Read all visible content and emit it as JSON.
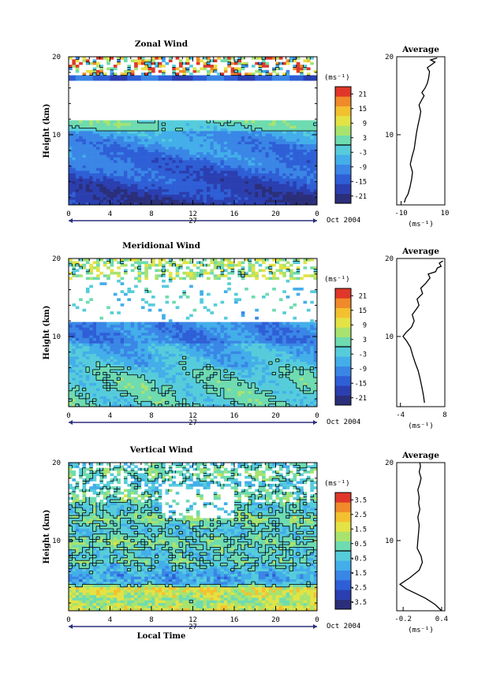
{
  "chart_data": [
    {
      "type": "heatmap",
      "title": "Zonal Wind",
      "xlabel": "",
      "ylabel": "Height (km)",
      "x_ticks": [
        "0",
        "4",
        "8",
        "12",
        "16",
        "20",
        "0"
      ],
      "y_ticks": [
        "10",
        "20"
      ],
      "xlim": [
        0,
        24
      ],
      "ylim": [
        1,
        20
      ],
      "date_marker": "27",
      "date_label": "Oct 2004",
      "colorbar": {
        "unit": "(ms⁻¹)",
        "ticks": [
          "21",
          "15",
          "9",
          "3",
          "-3",
          "-9",
          "-15",
          "-21"
        ],
        "range": [
          -24,
          24
        ],
        "contour_level": 0
      },
      "profile": {
        "title": "Average",
        "xlabel": "(ms⁻¹)",
        "x_ticks": [
          "-10",
          "10"
        ],
        "xlim": [
          -12,
          10
        ],
        "y_ticks": [
          "10",
          "20"
        ],
        "points": [
          [
            -8.5,
            1.3
          ],
          [
            -8,
            1.8
          ],
          [
            -6.8,
            2.4
          ],
          [
            -6,
            3.2
          ],
          [
            -5.2,
            4.3
          ],
          [
            -4.8,
            5.2
          ],
          [
            -5.8,
            6.2
          ],
          [
            -5,
            7.2
          ],
          [
            -4,
            8.2
          ],
          [
            -3.5,
            9.2
          ],
          [
            -3,
            10.2
          ],
          [
            -2.3,
            11.2
          ],
          [
            -1.5,
            12.2
          ],
          [
            -1,
            13
          ],
          [
            -1.8,
            13.8
          ],
          [
            -0.5,
            14.5
          ],
          [
            0.5,
            15
          ],
          [
            -0.5,
            15.4
          ],
          [
            1,
            16
          ],
          [
            2,
            16.6
          ],
          [
            2.6,
            17.3
          ],
          [
            3,
            18.1
          ],
          [
            2,
            18.6
          ],
          [
            4,
            19
          ],
          [
            5.5,
            19.3
          ],
          [
            3.5,
            19.6
          ],
          [
            6.5,
            19.85
          ]
        ]
      }
    },
    {
      "type": "heatmap",
      "title": "Meridional Wind",
      "xlabel": "",
      "ylabel": "Height (km)",
      "x_ticks": [
        "0",
        "4",
        "8",
        "12",
        "16",
        "20",
        "0"
      ],
      "y_ticks": [
        "10",
        "20"
      ],
      "xlim": [
        0,
        24
      ],
      "ylim": [
        1,
        20
      ],
      "date_marker": "27",
      "date_label": "Oct 2004",
      "colorbar": {
        "unit": "(ms⁻¹)",
        "ticks": [
          "21",
          "15",
          "9",
          "3",
          "-3",
          "-9",
          "-15",
          "-21"
        ],
        "range": [
          -24,
          24
        ],
        "contour_level": 0
      },
      "profile": {
        "title": "Average",
        "xlabel": "(ms⁻¹)",
        "x_ticks": [
          "-4",
          "8"
        ],
        "xlim": [
          -5,
          8
        ],
        "y_ticks": [
          "10",
          "20"
        ],
        "points": [
          [
            2.5,
            1.5
          ],
          [
            2.2,
            2.5
          ],
          [
            1.8,
            3.5
          ],
          [
            1.3,
            4.6
          ],
          [
            0.8,
            5.6
          ],
          [
            0,
            6.6
          ],
          [
            -0.7,
            7.6
          ],
          [
            -1.3,
            8.6
          ],
          [
            -2.3,
            9.4
          ],
          [
            -3.3,
            10
          ],
          [
            -2.5,
            10.5
          ],
          [
            -1,
            11.2
          ],
          [
            -0.3,
            12
          ],
          [
            -0.8,
            12.8
          ],
          [
            0.3,
            13.5
          ],
          [
            1,
            14
          ],
          [
            0.5,
            14.8
          ],
          [
            2,
            15.5
          ],
          [
            1.5,
            16.2
          ],
          [
            2.8,
            16.8
          ],
          [
            4,
            17.5
          ],
          [
            3.5,
            18
          ],
          [
            5.5,
            18.3
          ],
          [
            6,
            18.8
          ],
          [
            7,
            19
          ],
          [
            6.5,
            19.4
          ],
          [
            7.5,
            19.7
          ]
        ]
      }
    },
    {
      "type": "heatmap",
      "title": "Vertical Wind",
      "xlabel": "Local Time",
      "ylabel": "Height (km)",
      "x_ticks": [
        "0",
        "4",
        "8",
        "12",
        "16",
        "20",
        "0"
      ],
      "y_ticks": [
        "10",
        "20"
      ],
      "xlim": [
        0,
        24
      ],
      "ylim": [
        1,
        20
      ],
      "date_marker": "27",
      "date_label": "Oct 2004",
      "colorbar": {
        "unit": "(ms⁻¹)",
        "ticks": [
          "3.5",
          "2.5",
          "1.5",
          "0.5",
          "-0.5",
          "-1.5",
          "-2.5",
          "-3.5"
        ],
        "range": [
          -4,
          4
        ],
        "contour_level": 0
      },
      "profile": {
        "title": "Average",
        "xlabel": "(ms⁻¹)",
        "x_ticks": [
          "-0.2",
          "0.4"
        ],
        "xlim": [
          -0.3,
          0.45
        ],
        "y_ticks": [
          "10",
          "20"
        ],
        "points": [
          [
            0.4,
            1
          ],
          [
            0.3,
            1.8
          ],
          [
            0.15,
            2.6
          ],
          [
            0,
            3.2
          ],
          [
            -0.15,
            3.8
          ],
          [
            -0.25,
            4.4
          ],
          [
            -0.1,
            5.2
          ],
          [
            0.05,
            6.2
          ],
          [
            0.1,
            7.2
          ],
          [
            0.08,
            8
          ],
          [
            0.02,
            9
          ],
          [
            0.03,
            10
          ],
          [
            0.04,
            11
          ],
          [
            0.05,
            12
          ],
          [
            0.03,
            13
          ],
          [
            0.06,
            14
          ],
          [
            0.04,
            14.8
          ],
          [
            0.05,
            15.5
          ],
          [
            0.03,
            16.5
          ],
          [
            0.06,
            17.3
          ],
          [
            0.08,
            18
          ],
          [
            0.05,
            18.8
          ],
          [
            0.07,
            19.5
          ],
          [
            0.06,
            20
          ]
        ]
      }
    }
  ]
}
